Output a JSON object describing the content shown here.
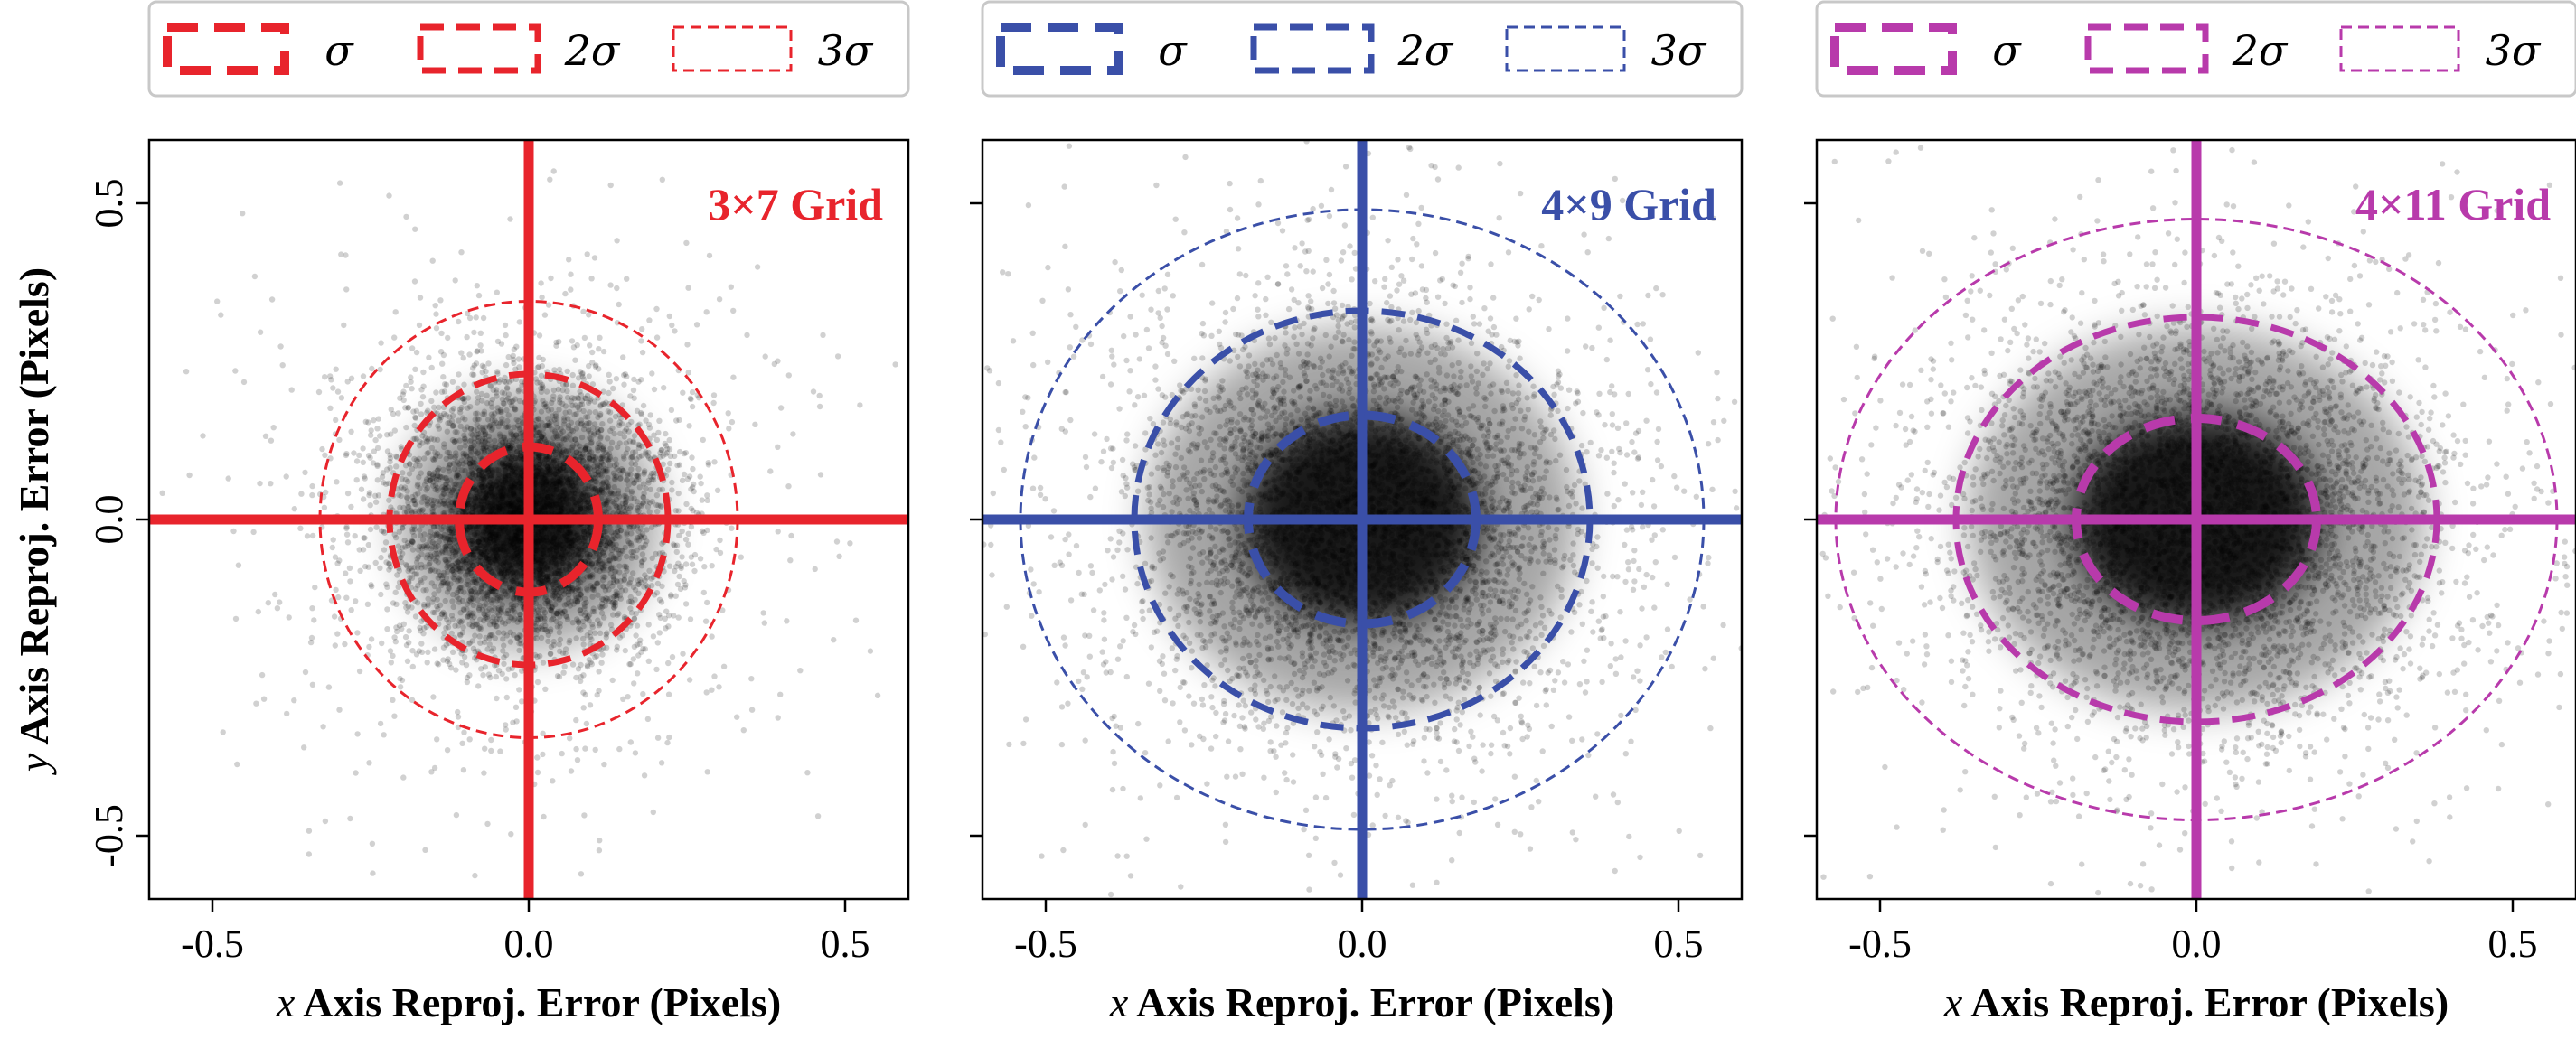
{
  "chart_data": [
    {
      "type": "scatter",
      "title": "3×7 Grid",
      "color": "#e8242c",
      "xlabel": {
        "var": "x",
        "text": " Axis Reproj. Error (Pixels)"
      },
      "ylabel": {
        "var": "y",
        "text": " Axis Reproj. Error (Pixels)"
      },
      "xlim": [
        -0.6,
        0.6
      ],
      "ylim": [
        -0.6,
        0.6
      ],
      "xticks": [
        -0.5,
        0.0,
        0.5
      ],
      "xtick_labels": [
        "-0.5",
        "0.0",
        "0.5"
      ],
      "yticks": [
        -0.5,
        0.0,
        0.5
      ],
      "ytick_labels": [
        "-0.5",
        "0.0",
        "0.5"
      ],
      "crosshair": {
        "x": 0.0,
        "y": 0.0
      },
      "sigma": {
        "x": 0.11,
        "y": 0.11
      },
      "mean": {
        "x": 0.0,
        "y": 0.0
      },
      "ellipses": [
        {
          "label": "σ",
          "k": 1,
          "rx": 0.11,
          "ry": 0.115
        },
        {
          "label": "2σ",
          "k": 2,
          "rx": 0.22,
          "ry": 0.23
        },
        {
          "label": "3σ",
          "k": 3,
          "rx": 0.33,
          "ry": 0.345
        }
      ],
      "legend": [
        "σ",
        "2σ",
        "3σ"
      ]
    },
    {
      "type": "scatter",
      "title": "4×9 Grid",
      "color": "#3a4fa8",
      "xlabel": {
        "var": "x",
        "text": " Axis Reproj. Error (Pixels)"
      },
      "ylabel": null,
      "xlim": [
        -0.6,
        0.6
      ],
      "ylim": [
        -0.6,
        0.6
      ],
      "xticks": [
        -0.5,
        0.0,
        0.5
      ],
      "xtick_labels": [
        "-0.5",
        "0.0",
        "0.5"
      ],
      "yticks": [
        -0.5,
        0.0,
        0.5
      ],
      "ytick_labels": [],
      "crosshair": {
        "x": 0.0,
        "y": 0.0
      },
      "sigma": {
        "x": 0.18,
        "y": 0.16
      },
      "mean": {
        "x": 0.0,
        "y": 0.0
      },
      "ellipses": [
        {
          "label": "σ",
          "k": 1,
          "rx": 0.18,
          "ry": 0.165
        },
        {
          "label": "2σ",
          "k": 2,
          "rx": 0.36,
          "ry": 0.33
        },
        {
          "label": "3σ",
          "k": 3,
          "rx": 0.54,
          "ry": 0.49
        }
      ],
      "legend": [
        "σ",
        "2σ",
        "3σ"
      ]
    },
    {
      "type": "scatter",
      "title": "4×11 Grid",
      "color": "#b83aab",
      "xlabel": {
        "var": "x",
        "text": " Axis Reproj. Error (Pixels)"
      },
      "ylabel": null,
      "xlim": [
        -0.6,
        0.6
      ],
      "ylim": [
        -0.6,
        0.6
      ],
      "xticks": [
        -0.5,
        0.0,
        0.5
      ],
      "xtick_labels": [
        "-0.5",
        "0.0",
        "0.5"
      ],
      "yticks": [
        -0.5,
        0.0,
        0.5
      ],
      "ytick_labels": [],
      "crosshair": {
        "x": 0.0,
        "y": 0.0
      },
      "sigma": {
        "x": 0.19,
        "y": 0.16
      },
      "mean": {
        "x": 0.0,
        "y": 0.0
      },
      "ellipses": [
        {
          "label": "σ",
          "k": 1,
          "rx": 0.19,
          "ry": 0.16
        },
        {
          "label": "2σ",
          "k": 2,
          "rx": 0.38,
          "ry": 0.32
        },
        {
          "label": "3σ",
          "k": 3,
          "rx": 0.57,
          "ry": 0.475
        }
      ],
      "legend": [
        "σ",
        "2σ",
        "3σ"
      ]
    }
  ]
}
